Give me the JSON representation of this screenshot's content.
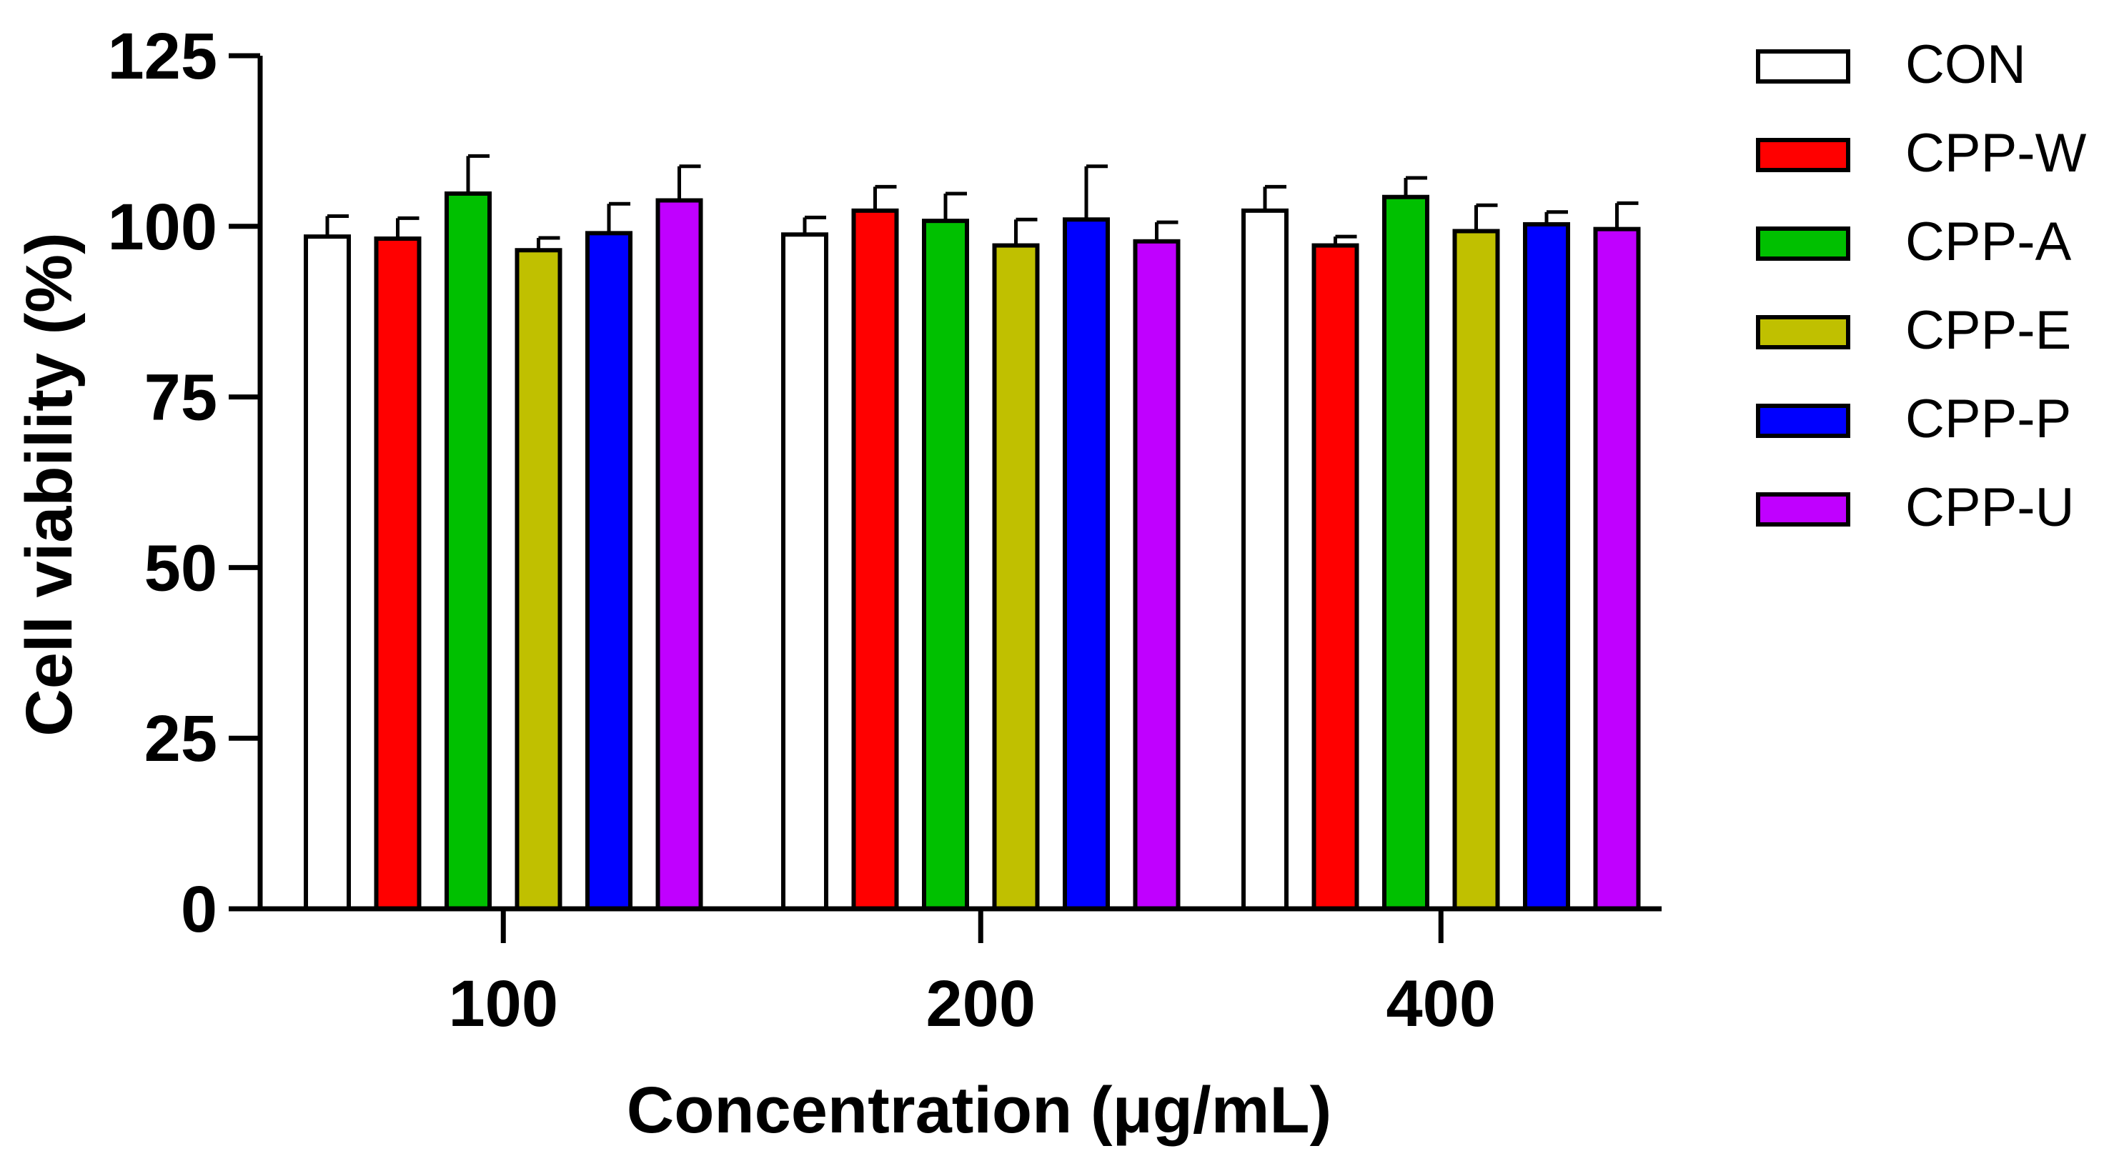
{
  "chart_data": {
    "type": "bar",
    "xlabel": "Concentration (μg/mL)",
    "ylabel": "Cell viability (%)",
    "ylim": [
      0,
      125
    ],
    "yticks": [
      0,
      25,
      50,
      75,
      100,
      125
    ],
    "ytick_labels": [
      "0",
      "25",
      "50",
      "75",
      "100",
      "125"
    ],
    "categories": [
      "100",
      "200",
      "400"
    ],
    "legend_position": "right",
    "series": [
      {
        "name": "CON",
        "color": "#ffffff",
        "values": [
          98.5,
          98.8,
          102.3
        ],
        "errors": [
          3.0,
          2.5,
          3.5
        ]
      },
      {
        "name": "CPP-W",
        "color": "#ff0000",
        "values": [
          98.2,
          102.3,
          97.2
        ],
        "errors": [
          3.0,
          3.5,
          1.3
        ]
      },
      {
        "name": "CPP-A",
        "color": "#00c000",
        "values": [
          104.8,
          100.8,
          104.3
        ],
        "errors": [
          5.5,
          4.0,
          2.8
        ]
      },
      {
        "name": "CPP-E",
        "color": "#c0c000",
        "values": [
          96.5,
          97.2,
          99.3
        ],
        "errors": [
          1.8,
          3.8,
          3.8
        ]
      },
      {
        "name": "CPP-P",
        "color": "#0000ff",
        "values": [
          99.0,
          101.0,
          100.3
        ],
        "errors": [
          4.3,
          7.8,
          1.8
        ]
      },
      {
        "name": "CPP-U",
        "color": "#c000ff",
        "values": [
          103.8,
          97.8,
          99.6
        ],
        "errors": [
          5.0,
          2.8,
          3.8
        ]
      }
    ]
  }
}
